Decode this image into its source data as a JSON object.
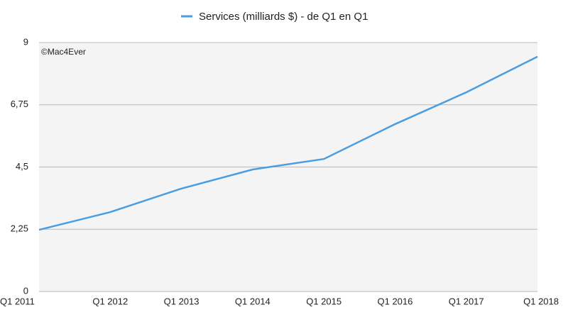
{
  "chart_data": {
    "type": "line",
    "categories": [
      "Q1 2011",
      "Q1 2012",
      "Q1 2013",
      "Q1 2014",
      "Q1 2015",
      "Q1 2016",
      "Q1 2017",
      "Q1 2018"
    ],
    "series": [
      {
        "name": "Services (milliards $) - de Q1 en Q1",
        "color": "#4a9de0",
        "values": [
          2.23,
          2.87,
          3.72,
          4.41,
          4.79,
          6.05,
          7.2,
          8.49
        ]
      }
    ],
    "ylim": [
      0,
      9
    ],
    "yticks": [
      0,
      {
        "value": 2.25,
        "label": "2,25"
      },
      {
        "value": 4.5,
        "label": "4,5"
      },
      {
        "value": 6.75,
        "label": "6,75"
      },
      9
    ],
    "grid": true,
    "legend": "top",
    "annotations": [
      "©Mac4Ever"
    ]
  }
}
